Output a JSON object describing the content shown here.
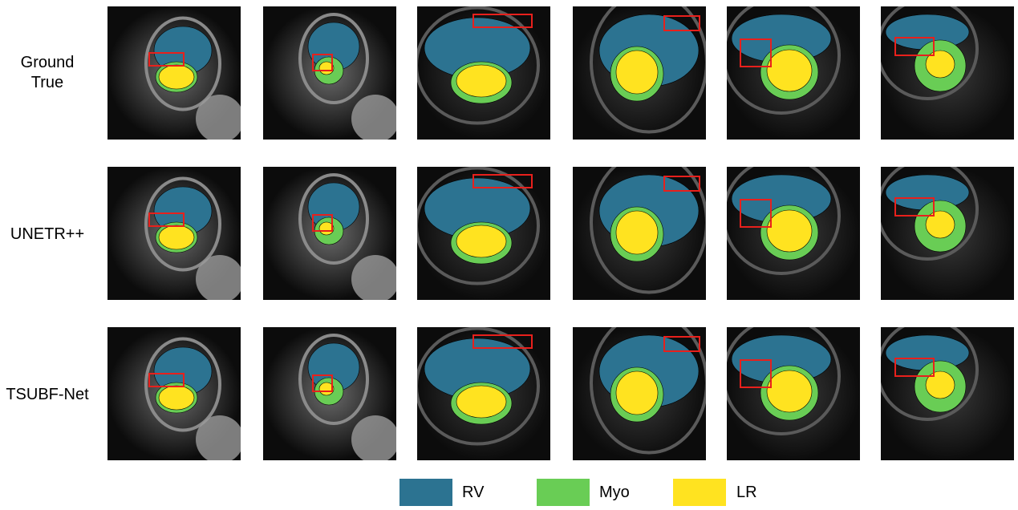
{
  "row_labels": {
    "ground_true": "Ground\nTrue",
    "unetr": "UNETR++",
    "tsubf": "TSUBF-Net"
  },
  "legend": [
    {
      "label": "RV",
      "color": "#2c7391"
    },
    {
      "label": "Myo",
      "color": "#69cd55"
    },
    {
      "label": "LR",
      "color": "#ffe320"
    }
  ],
  "colors": {
    "rv": "#2c7391",
    "myo": "#69cd55",
    "lr": "#ffe320",
    "highlight_box": "#e8201c",
    "background_tissue": "#2a2a2a"
  },
  "grid": {
    "rows": [
      "ground_true",
      "unetr",
      "tsubf"
    ],
    "columns": 6,
    "content": "cardiac MRI short-axis slices with segmentation overlays; red boxes highlight regions of interest"
  }
}
